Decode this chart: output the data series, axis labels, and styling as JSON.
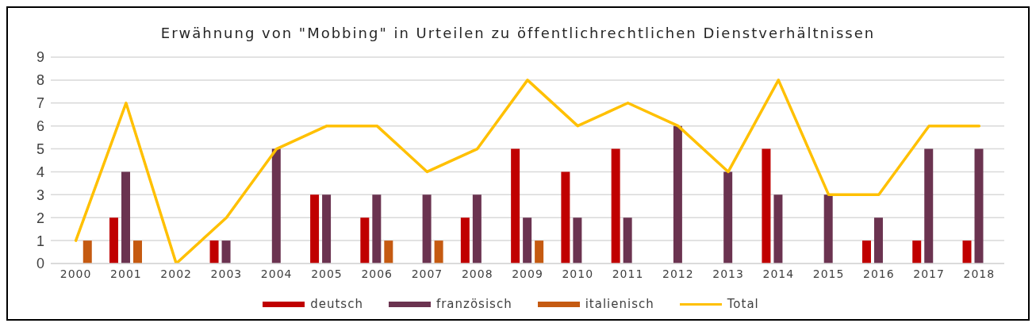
{
  "chart_data": {
    "type": "bar",
    "title": "Erwähnung von \"Mobbing\" in Urteilen zu öffentlichrechtlichen Dienstverhältnissen",
    "categories": [
      "2000",
      "2001",
      "2002",
      "2003",
      "2004",
      "2005",
      "2006",
      "2007",
      "2008",
      "2009",
      "2010",
      "2011",
      "2012",
      "2013",
      "2014",
      "2015",
      "2016",
      "2017",
      "2018"
    ],
    "series": [
      {
        "name": "deutsch",
        "color": "#c00000",
        "values": [
          0,
          2,
          0,
          1,
          0,
          3,
          2,
          0,
          2,
          5,
          4,
          5,
          0,
          0,
          5,
          0,
          1,
          1,
          1
        ]
      },
      {
        "name": "französisch",
        "color": "#6b3350",
        "values": [
          0,
          4,
          0,
          1,
          5,
          3,
          3,
          3,
          3,
          2,
          2,
          2,
          6,
          4,
          3,
          3,
          2,
          5,
          5
        ]
      },
      {
        "name": "italienisch",
        "color": "#c55a11",
        "values": [
          1,
          1,
          0,
          0,
          0,
          0,
          1,
          1,
          0,
          1,
          0,
          0,
          0,
          0,
          0,
          0,
          0,
          0,
          0
        ]
      },
      {
        "name": "Total",
        "type": "line",
        "color": "#ffc000",
        "values": [
          1,
          7,
          0,
          2,
          5,
          6,
          6,
          4,
          5,
          8,
          6,
          7,
          6,
          4,
          8,
          3,
          3,
          6,
          6
        ]
      }
    ],
    "ylim": [
      0,
      9
    ],
    "yticks": [
      0,
      1,
      2,
      3,
      4,
      5,
      6,
      7,
      8,
      9
    ],
    "grid": "y",
    "legend": "bottom",
    "marker": "none"
  }
}
